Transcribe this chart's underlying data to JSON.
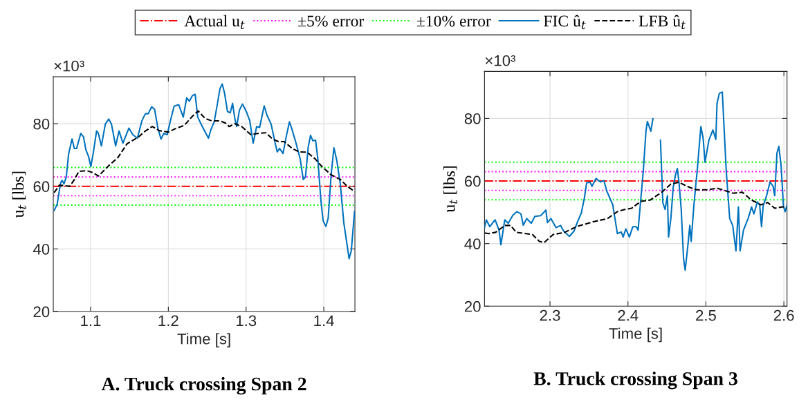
{
  "chart_data": [
    {
      "type": "line",
      "title": "A. Truck crossing Span 2",
      "xlabel": "Time [s]",
      "ylabel": "u$_{t}$ [lbs]",
      "annotations": [
        "×10³"
      ],
      "xlim": [
        1.052,
        1.44
      ],
      "xticks": [
        1.1,
        1.2,
        1.3,
        1.4
      ],
      "ylim": [
        20,
        95
      ],
      "yticks": [
        20,
        40,
        60,
        80
      ],
      "grid": true,
      "legend": "top",
      "ref_lines": [
        {
          "axis": "y",
          "value": 60,
          "label": "Actual u$_{t}$",
          "color": "#ff0000",
          "line_style": "dashdot"
        },
        {
          "axis": "y",
          "value": 63,
          "label": "±5% error",
          "color": "#ff00ff",
          "line_style": "dotted"
        },
        {
          "axis": "y",
          "value": 57,
          "color": "#ff00ff",
          "line_style": "dotted"
        },
        {
          "axis": "y",
          "value": 66,
          "label": "±10% error",
          "color": "#00ff00",
          "line_style": "dotted"
        },
        {
          "axis": "y",
          "value": 54,
          "color": "#00ff00",
          "line_style": "dotted"
        }
      ],
      "series": [
        {
          "name": "FIC û$_{t}$",
          "color": "#0072bd",
          "line_style": "solid",
          "x": [
            1.0531,
            1.0569,
            1.0614,
            1.0634,
            1.0658,
            1.0687,
            1.0717,
            1.0761,
            1.0791,
            1.082,
            1.0873,
            1.0909,
            1.0938,
            1.0973,
            1.1003,
            1.1032,
            1.1077,
            1.11,
            1.1139,
            1.1189,
            1.1233,
            1.1268,
            1.1322,
            1.1366,
            1.1416,
            1.1493,
            1.1543,
            1.1602,
            1.1661,
            1.1705,
            1.1741,
            1.1785,
            1.1823,
            1.1867,
            1.1906,
            1.1941,
            1.1985,
            1.203,
            1.2074,
            1.2133,
            1.2192,
            1.2236,
            1.2271,
            1.231,
            1.2345,
            1.2378,
            1.2437,
            1.2516,
            1.2546,
            1.259,
            1.2634,
            1.2664,
            1.2693,
            1.2723,
            1.2761,
            1.2796,
            1.2826,
            1.2855,
            1.2879,
            1.2914,
            1.2953,
            1.3003,
            1.3047,
            1.3091,
            1.3136,
            1.3174,
            1.3233,
            1.3268,
            1.3322,
            1.3372,
            1.3401,
            1.3431,
            1.3475,
            1.3519,
            1.3558,
            1.3593,
            1.3637,
            1.3696,
            1.3735,
            1.3764,
            1.3799,
            1.3829,
            1.3858,
            1.3894,
            1.3923,
            1.3962,
            1.3991,
            1.4027,
            1.4056,
            1.4094,
            1.413,
            1.4168,
            1.4212,
            1.4257,
            1.4301,
            1.4325,
            1.4354,
            1.4395
          ],
          "values": [
            52.3,
            54.2,
            61.1,
            61.9,
            60.8,
            63.0,
            70.3,
            75.1,
            72.1,
            72.1,
            76.9,
            75.8,
            71.8,
            69.6,
            66.3,
            70.3,
            77.7,
            76.9,
            72.9,
            79.9,
            81.5,
            79.9,
            72.9,
            77.7,
            73.8,
            78.6,
            76.5,
            75.4,
            81.0,
            83.2,
            83.2,
            85.4,
            84.6,
            78.4,
            75.1,
            76.9,
            76.5,
            81.3,
            85.6,
            86.1,
            82.1,
            88.3,
            87.2,
            89.0,
            89.4,
            82.1,
            79.1,
            75.4,
            78.0,
            80.6,
            86.8,
            91.2,
            92.7,
            89.8,
            83.9,
            83.5,
            86.5,
            81.7,
            79.1,
            84.3,
            86.3,
            83.9,
            81.0,
            73.8,
            79.1,
            78.8,
            85.7,
            82.8,
            79.9,
            74.0,
            71.0,
            72.1,
            70.5,
            76.2,
            80.6,
            78.0,
            74.3,
            68.8,
            62.2,
            63.0,
            72.5,
            76.3,
            74.6,
            74.7,
            68.8,
            55.6,
            49.0,
            47.2,
            49.8,
            63.7,
            72.3,
            68.1,
            60.8,
            48.4,
            41.0,
            36.9,
            39.5,
            52.0
          ]
        },
        {
          "name": "LFB û$_{t}$",
          "color": "#000000",
          "line_style": "dashed",
          "x": [
            1.0531,
            1.0599,
            1.0732,
            1.0791,
            1.085,
            1.0953,
            1.1027,
            1.11,
            1.1233,
            1.1351,
            1.1469,
            1.1617,
            1.1705,
            1.1794,
            1.1882,
            1.2,
            1.2088,
            1.2206,
            1.231,
            1.2383,
            1.2472,
            1.256,
            1.2664,
            1.2737,
            1.2782,
            1.2855,
            1.2944,
            1.3062,
            1.315,
            1.3254,
            1.3342,
            1.3416,
            1.349,
            1.3593,
            1.3681,
            1.3785,
            1.3888,
            1.3976,
            1.4094,
            1.4212,
            1.4301,
            1.4383
          ],
          "values": [
            58.0,
            60.4,
            60.0,
            62.2,
            64.8,
            65.0,
            64.4,
            63.3,
            66.6,
            69.2,
            73.6,
            75.8,
            77.7,
            79.1,
            77.8,
            77.3,
            78.4,
            79.5,
            82.4,
            84.1,
            81.7,
            80.9,
            80.9,
            80.2,
            79.1,
            80.0,
            79.1,
            76.5,
            76.9,
            77.1,
            75.1,
            74.3,
            74.3,
            72.1,
            71.0,
            70.9,
            68.8,
            66.3,
            63.7,
            62.2,
            60.0,
            58.6
          ]
        }
      ]
    },
    {
      "type": "line",
      "title": "B. Truck crossing Span 3",
      "xlabel": "Time [s]",
      "ylabel": "u$_{t}$ [lbs]",
      "annotations": [
        "×10³"
      ],
      "xlim": [
        2.216,
        2.604
      ],
      "xticks": [
        2.3,
        2.4,
        2.5,
        2.6
      ],
      "ylim": [
        20,
        95
      ],
      "yticks": [
        20,
        40,
        60,
        80
      ],
      "grid": true,
      "ref_lines": [
        {
          "axis": "y",
          "value": 60,
          "color": "#ff0000",
          "line_style": "dashdot"
        },
        {
          "axis": "y",
          "value": 63,
          "color": "#ff00ff",
          "line_style": "dotted"
        },
        {
          "axis": "y",
          "value": 57,
          "color": "#ff00ff",
          "line_style": "dotted"
        },
        {
          "axis": "y",
          "value": 66,
          "color": "#00ff00",
          "line_style": "dotted"
        },
        {
          "axis": "y",
          "value": 54,
          "color": "#00ff00",
          "line_style": "dotted"
        }
      ],
      "series": [
        {
          "color": "#0072bd",
          "line_style": "solid",
          "x": [
            2.216,
            2.2183,
            2.2228,
            2.2296,
            2.2346,
            2.237,
            2.242,
            2.2464,
            2.2524,
            2.2574,
            2.2627,
            2.2657,
            2.2701,
            2.276,
            2.2805,
            2.2879,
            2.2947,
            2.2967,
            2.3012,
            2.3077,
            2.3136,
            2.3175,
            2.3249,
            2.3308,
            2.3352,
            2.3402,
            2.3441,
            2.347,
            2.3515,
            2.3538,
            2.3589,
            2.3648,
            2.3692,
            2.3728,
            2.3805,
            2.3864,
            2.3914,
            2.3938,
            2.3973,
            2.4018,
            2.4062,
            2.4107,
            2.413,
            2.4166,
            2.4195,
            2.4231,
            2.4249,
            2.4293,
            2.432,
            2.4349,
            2.4379,
            2.4417,
            2.4447,
            2.4476,
            2.4506,
            2.4521,
            2.455,
            2.458,
            2.4609,
            2.4633,
            2.4654,
            2.4683,
            2.4713,
            2.4734,
            2.4772,
            2.4793,
            2.4811,
            2.4846,
            2.4891,
            2.4935,
            2.4964,
            2.4988,
            2.5038,
            2.5089,
            2.5127,
            2.5142,
            2.5172,
            2.521,
            2.526,
            2.5305,
            2.5343,
            2.5385,
            2.5417,
            2.5438,
            2.5482,
            2.5541,
            2.5586,
            2.5615,
            2.566,
            2.5689,
            2.5713,
            2.5734,
            2.5778,
            2.5822,
            2.5861,
            2.5882,
            2.5911,
            2.5935,
            2.5964,
            2.5994,
            2.6015,
            2.604
          ],
          "values": [
            45.1,
            47.6,
            45.4,
            47.6,
            44.3,
            39.6,
            47.6,
            46.5,
            49.1,
            50.2,
            49.5,
            45.9,
            48.0,
            46.5,
            48.7,
            48.9,
            50.7,
            46.7,
            48.0,
            45.1,
            45.8,
            44.0,
            42.3,
            44.0,
            46.9,
            49.8,
            54.6,
            59.4,
            59.6,
            58.3,
            60.8,
            59.7,
            60.1,
            56.8,
            52.4,
            43.2,
            43.7,
            42.1,
            44.7,
            42.1,
            45.4,
            45.4,
            44.3,
            54.6,
            62.7,
            76.0,
            79.0,
            75.9,
            79.9,
            null,
            null,
            73.0,
            53.1,
            50.9,
            55.3,
            42.1,
            48.0,
            57.9,
            61.9,
            64.0,
            59.7,
            50.9,
            35.2,
            31.5,
            40.3,
            45.8,
            40.7,
            52.4,
            64.1,
            77.4,
            73.7,
            66.0,
            73.0,
            76.3,
            73.3,
            84.7,
            88.0,
            88.4,
            63.4,
            48.0,
            45.8,
            37.7,
            51.7,
            37.7,
            44.3,
            48.0,
            51.7,
            49.5,
            53.3,
            52.4,
            45.4,
            52.0,
            55.3,
            59.7,
            58.3,
            55.3,
            68.9,
            71.1,
            64.9,
            52.0,
            50.2,
            52.3
          ]
        },
        {
          "color": "#000000",
          "line_style": "dashed",
          "x": [
            2.216,
            2.2213,
            2.2302,
            2.242,
            2.2494,
            2.2568,
            2.2775,
            2.2864,
            2.2923,
            2.3041,
            2.3189,
            2.3337,
            2.3544,
            2.3737,
            2.387,
            2.3959,
            2.4047,
            2.4166,
            2.4284,
            2.4432,
            2.455,
            2.4654,
            2.4757,
            2.4876,
            2.5024,
            2.5142,
            2.526,
            2.5349,
            2.5467,
            2.5586,
            2.5704,
            2.5793,
            2.5882,
            2.597,
            2.603
          ],
          "values": [
            43.4,
            43.2,
            43.6,
            45.8,
            45.8,
            43.6,
            42.9,
            40.7,
            40.3,
            42.9,
            43.6,
            45.4,
            46.9,
            48.0,
            50.3,
            50.9,
            51.3,
            53.5,
            53.9,
            56.4,
            59.0,
            59.6,
            58.3,
            57.2,
            57.2,
            57.7,
            56.8,
            56.1,
            56.4,
            53.9,
            52.4,
            53.1,
            51.3,
            51.7,
            51.8
          ]
        }
      ]
    }
  ]
}
